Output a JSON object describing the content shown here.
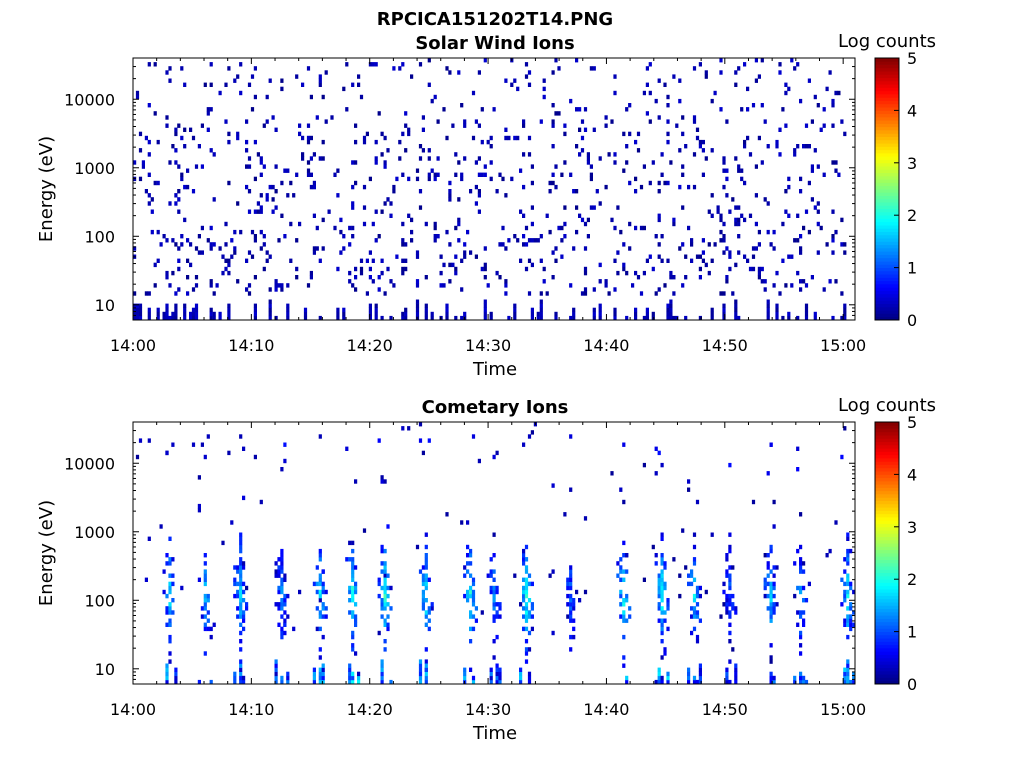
{
  "figure_title": "RPCICA151202T14.PNG",
  "colors": {
    "jet_stops": [
      "#00007f",
      "#0000ff",
      "#007fff",
      "#00ffff",
      "#7fff7f",
      "#ffff00",
      "#ff7f00",
      "#ff0000",
      "#7f0000"
    ]
  },
  "chart_data": [
    {
      "type": "heatmap",
      "title": "Solar Wind Ions",
      "xlabel": "Time",
      "ylabel": "Energy (eV)",
      "x_ticks": [
        "14:00",
        "14:10",
        "14:20",
        "14:30",
        "14:40",
        "14:50",
        "15:00"
      ],
      "xlim_minutes": [
        0,
        61
      ],
      "y_scale": "log",
      "y_ticks": [
        "10",
        "100",
        "1000",
        "10000"
      ],
      "ylim": [
        6,
        40000
      ],
      "colorbar": {
        "label": "Log counts",
        "ticks": [
          "0",
          "1",
          "2",
          "3",
          "4",
          "5"
        ],
        "range": [
          0,
          5
        ],
        "colormap": "jet"
      },
      "distribution": "sparse scattered counts mostly at log count ~0-0.3 across all times and energies 10-30000 eV, densest below 100 eV",
      "clusters": []
    },
    {
      "type": "heatmap",
      "title": "Cometary Ions",
      "xlabel": "Time",
      "ylabel": "Energy (eV)",
      "x_ticks": [
        "14:00",
        "14:10",
        "14:20",
        "14:30",
        "14:40",
        "14:50",
        "15:00"
      ],
      "xlim_minutes": [
        0,
        61
      ],
      "y_scale": "log",
      "y_ticks": [
        "10",
        "100",
        "1000",
        "10000"
      ],
      "ylim": [
        6,
        40000
      ],
      "colorbar": {
        "label": "Log counts",
        "ticks": [
          "0",
          "1",
          "2",
          "3",
          "4",
          "5"
        ],
        "range": [
          0,
          5
        ],
        "colormap": "jet"
      },
      "distribution": "periodic vertical bursts of counts between ~10 and ~600 eV, peak log counts ~2",
      "clusters": [
        {
          "t_min": 3.0,
          "peak_log_counts": 1.7
        },
        {
          "t_min": 6.2,
          "peak_log_counts": 1.5
        },
        {
          "t_min": 9.0,
          "peak_log_counts": 1.6
        },
        {
          "t_min": 12.5,
          "peak_log_counts": 1.3
        },
        {
          "t_min": 15.8,
          "peak_log_counts": 1.7
        },
        {
          "t_min": 18.5,
          "peak_log_counts": 2.0
        },
        {
          "t_min": 21.3,
          "peak_log_counts": 2.0
        },
        {
          "t_min": 24.8,
          "peak_log_counts": 1.8
        },
        {
          "t_min": 28.5,
          "peak_log_counts": 1.9
        },
        {
          "t_min": 30.5,
          "peak_log_counts": 1.2
        },
        {
          "t_min": 33.2,
          "peak_log_counts": 2.0
        },
        {
          "t_min": 37.0,
          "peak_log_counts": 1.0
        },
        {
          "t_min": 41.5,
          "peak_log_counts": 1.9
        },
        {
          "t_min": 44.7,
          "peak_log_counts": 1.9
        },
        {
          "t_min": 47.5,
          "peak_log_counts": 1.7
        },
        {
          "t_min": 50.5,
          "peak_log_counts": 1.0
        },
        {
          "t_min": 54.0,
          "peak_log_counts": 1.6
        },
        {
          "t_min": 56.5,
          "peak_log_counts": 1.4
        },
        {
          "t_min": 60.5,
          "peak_log_counts": 1.8
        }
      ]
    }
  ]
}
